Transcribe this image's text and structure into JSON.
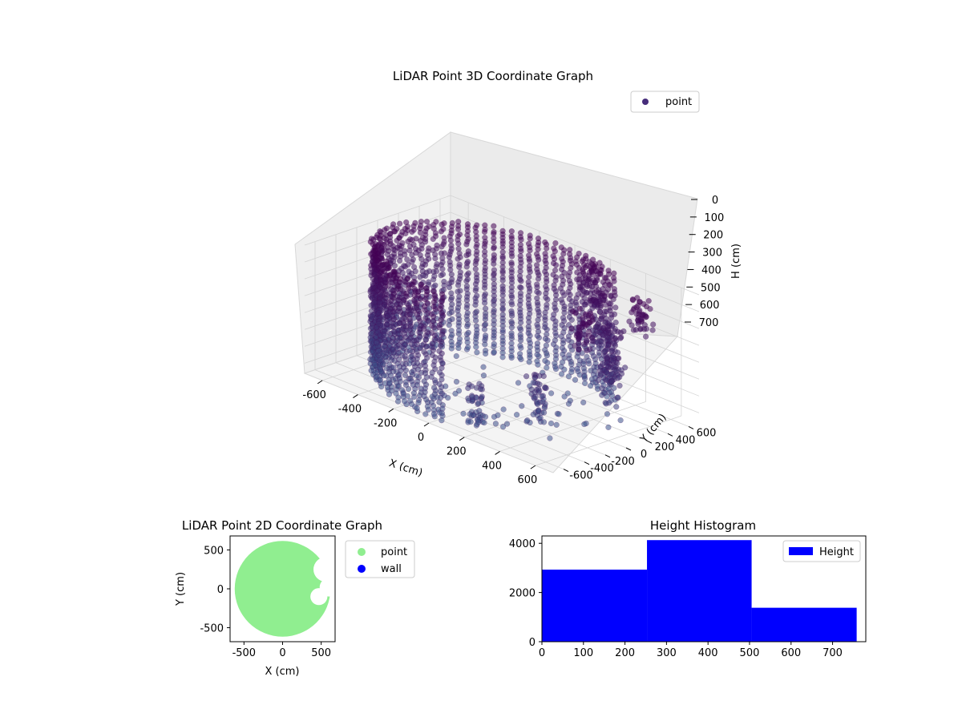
{
  "chart_data": [
    {
      "type": "scatter",
      "title": "LiDAR Point 3D Coordinate Graph",
      "xlabel": "X (cm)",
      "ylabel": "Y (cm)",
      "zlabel": "H (cm)",
      "xlim": [
        -700,
        700
      ],
      "ylim": [
        -700,
        700
      ],
      "zlim": [
        0,
        760
      ],
      "z_inverted": true,
      "xticks": [
        -600,
        -400,
        -200,
        0,
        200,
        400,
        600
      ],
      "yticks": [
        -600,
        -400,
        -200,
        0,
        200,
        400,
        600
      ],
      "zticks": [
        0,
        100,
        200,
        300,
        400,
        500,
        600,
        700
      ],
      "legend": {
        "placement": "top-right",
        "entries": [
          "point"
        ]
      },
      "series": [
        {
          "name": "point",
          "color_low": "#3b528b",
          "color_high": "#440154",
          "dense_wall": {
            "radius": 620,
            "angle_from_deg": 60,
            "angle_to_deg": 275,
            "h_min": 0,
            "h_max": 760
          },
          "clusters": [
            {
              "x": 150,
              "y": 600,
              "h_min": 0,
              "h_max": 300
            },
            {
              "x": 300,
              "y": 450,
              "h_min": 100,
              "h_max": 400
            },
            {
              "x": 450,
              "y": 300,
              "h_min": 200,
              "h_max": 500
            },
            {
              "x": 550,
              "y": 100,
              "h_min": 300,
              "h_max": 600
            },
            {
              "x": 520,
              "y": -100,
              "h_min": 0,
              "h_max": 250
            },
            {
              "x": 350,
              "y": -250,
              "h_min": 400,
              "h_max": 700
            },
            {
              "x": 150,
              "y": -500,
              "h_min": 500,
              "h_max": 760
            },
            {
              "x": 580,
              "y": 350,
              "h_min": 0,
              "h_max": 200
            }
          ]
        }
      ]
    },
    {
      "type": "scatter",
      "title": "LiDAR Point 2D Coordinate Graph",
      "xlabel": "X (cm)",
      "ylabel": "Y (cm)",
      "xlim": [
        -680,
        680
      ],
      "ylim": [
        -680,
        680
      ],
      "xticks": [
        -500,
        0,
        500
      ],
      "yticks": [
        -500,
        0,
        500
      ],
      "legend": {
        "placement": "outside-right",
        "entries": [
          "point",
          "wall"
        ]
      },
      "series": [
        {
          "name": "point",
          "color": "#90ee90",
          "disc_radius": 620,
          "gaps": [
            {
              "x": 560,
              "y": 250,
              "r": 160
            },
            {
              "x": 600,
              "y": 20,
              "r": 120
            },
            {
              "x": 470,
              "y": -100,
              "r": 110
            },
            {
              "x": 650,
              "y": 420,
              "r": 110
            }
          ]
        },
        {
          "name": "wall",
          "color": "#0000ff",
          "points": []
        }
      ]
    },
    {
      "type": "bar",
      "title": "Height Histogram",
      "xlabel": "",
      "ylabel": "",
      "xlim": [
        0,
        780
      ],
      "ylim": [
        0,
        4300
      ],
      "xticks": [
        0,
        100,
        200,
        300,
        400,
        500,
        600,
        700
      ],
      "yticks": [
        0,
        2000,
        4000
      ],
      "bins": [
        [
          0,
          253
        ],
        [
          253,
          505
        ],
        [
          505,
          758
        ]
      ],
      "series": [
        {
          "name": "Height",
          "color": "#0000ff",
          "values": [
            2930,
            4130,
            1380
          ]
        }
      ],
      "legend": {
        "placement": "top-right",
        "entries": [
          "Height"
        ]
      }
    }
  ]
}
